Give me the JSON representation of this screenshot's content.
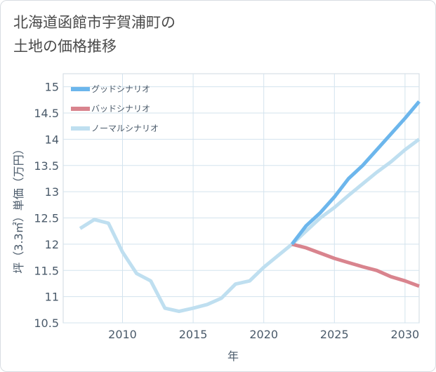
{
  "chart_data": {
    "type": "line",
    "title_line1": "北海道函館市宇賀浦町の",
    "title_line2": "土地の価格推移",
    "xlabel": "年",
    "ylabel": "坪（3.3㎡）単価（万円）",
    "xlim": [
      2005.8,
      2031
    ],
    "ylim": [
      10.5,
      15.25
    ],
    "x_ticks": [
      2010,
      2015,
      2020,
      2025,
      2030
    ],
    "y_ticks": [
      10.5,
      11,
      11.5,
      12,
      12.5,
      13,
      13.5,
      14,
      14.5,
      15
    ],
    "y_tick_labels": [
      "10.5",
      "11",
      "11.5",
      "12",
      "12.5",
      "13",
      "13.5",
      "14",
      "14.5",
      "15"
    ],
    "grid": true,
    "legend_position": "top-left",
    "series": [
      {
        "name": "グッドシナリオ",
        "color": "#6cb6ec",
        "x": [
          2022,
          2023,
          2024,
          2025,
          2026,
          2027,
          2028,
          2029,
          2030,
          2031
        ],
        "y": [
          12.0,
          12.35,
          12.6,
          12.9,
          13.25,
          13.5,
          13.8,
          14.1,
          14.4,
          14.72
        ]
      },
      {
        "name": "バッドシナリオ",
        "color": "#d9848e",
        "x": [
          2022,
          2023,
          2024,
          2025,
          2026,
          2027,
          2028,
          2029,
          2030,
          2031
        ],
        "y": [
          12.0,
          11.93,
          11.83,
          11.73,
          11.65,
          11.57,
          11.5,
          11.38,
          11.3,
          11.2
        ]
      },
      {
        "name": "ノーマルシナリオ",
        "color": "#bfdff0",
        "x": [
          2007,
          2008,
          2009,
          2010,
          2011,
          2012,
          2013,
          2014,
          2015,
          2016,
          2017,
          2018,
          2019,
          2020,
          2021,
          2022,
          2023,
          2024,
          2025,
          2026,
          2027,
          2028,
          2029,
          2030,
          2031
        ],
        "y": [
          12.3,
          12.47,
          12.4,
          11.85,
          11.44,
          11.3,
          10.78,
          10.72,
          10.78,
          10.85,
          10.97,
          11.24,
          11.3,
          11.56,
          11.78,
          12.0,
          12.25,
          12.5,
          12.7,
          12.93,
          13.15,
          13.37,
          13.57,
          13.8,
          14.0
        ]
      }
    ]
  }
}
